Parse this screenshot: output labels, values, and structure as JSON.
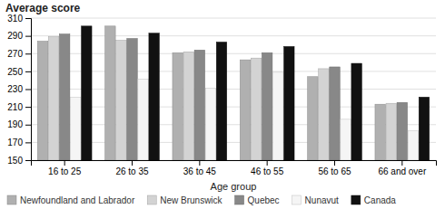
{
  "chart_data": {
    "type": "bar",
    "title": "Average score",
    "xlabel": "Age group",
    "categories": [
      "16 to 25",
      "26 to 35",
      "36 to 45",
      "46 to 55",
      "56 to 65",
      "66 and over"
    ],
    "series": [
      {
        "name": "Newfoundland and Labrador",
        "color": "#b0b0b0",
        "values": [
          284,
          301,
          271,
          263,
          244,
          213
        ]
      },
      {
        "name": "New Brunswick",
        "color": "#d3d3d3",
        "values": [
          289,
          285,
          272,
          265,
          253,
          214
        ]
      },
      {
        "name": "Quebec",
        "color": "#888888",
        "values": [
          292,
          287,
          274,
          271,
          255,
          215
        ]
      },
      {
        "name": "Nunavut",
        "color": "#f5f5f5",
        "values": [
          221,
          241,
          231,
          249,
          196,
          183
        ]
      },
      {
        "name": "Canada",
        "color": "#111111",
        "values": [
          301,
          293,
          283,
          278,
          259,
          221
        ]
      }
    ],
    "ylim": [
      150,
      310
    ],
    "yticks": [
      150,
      170,
      190,
      210,
      230,
      250,
      270,
      290,
      310
    ],
    "grid": true,
    "legend": "bottom"
  }
}
